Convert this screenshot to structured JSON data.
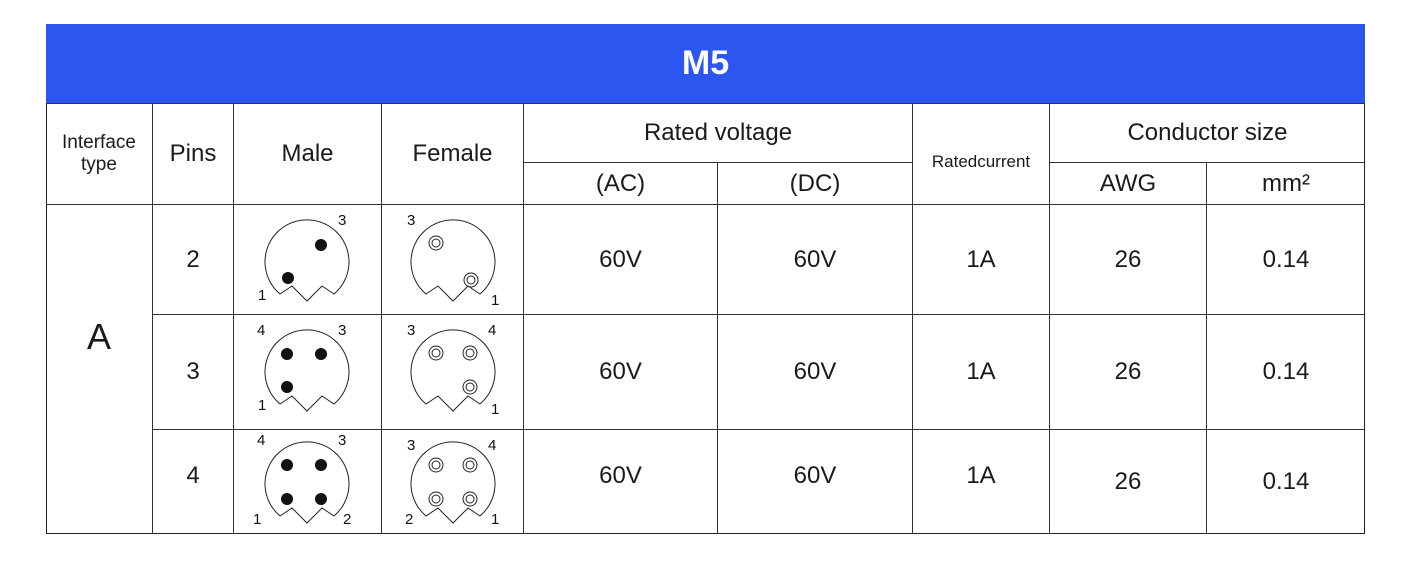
{
  "title": "M5",
  "headers": {
    "interface_type": "Interface type",
    "pins": "Pins",
    "male": "Male",
    "female": "Female",
    "rated_voltage": "Rated voltage",
    "ac": "(AC)",
    "dc": "(DC)",
    "rated_current": "Ratedcurrent",
    "conductor_size": "Conductor size",
    "awg": "AWG",
    "mm2": "mm²"
  },
  "interface_type": "A",
  "rows": [
    {
      "pins": "2",
      "ac": "60V",
      "dc": "60V",
      "current": "1A",
      "awg": "26",
      "mm2": "0.14",
      "male_labels": {
        "top_right": "3",
        "bottom_left": "1"
      },
      "female_labels": {
        "top_left": "3",
        "bottom_right": "1"
      }
    },
    {
      "pins": "3",
      "ac": "60V",
      "dc": "60V",
      "current": "1A",
      "awg": "26",
      "mm2": "0.14",
      "male_labels": {
        "top_left": "4",
        "top_right": "3",
        "bottom_left": "1"
      },
      "female_labels": {
        "top_left": "3",
        "top_right": "4",
        "bottom_right": "1"
      }
    },
    {
      "pins": "4",
      "ac": "60V",
      "dc": "60V",
      "current": "1A",
      "awg": "26",
      "mm2": "0.14",
      "male_labels": {
        "top_left": "4",
        "top_right": "3",
        "bottom_left": "1",
        "bottom_right": "2"
      },
      "female_labels": {
        "top_left": "3",
        "top_right": "4",
        "bottom_left": "2",
        "bottom_right": "1"
      }
    }
  ]
}
